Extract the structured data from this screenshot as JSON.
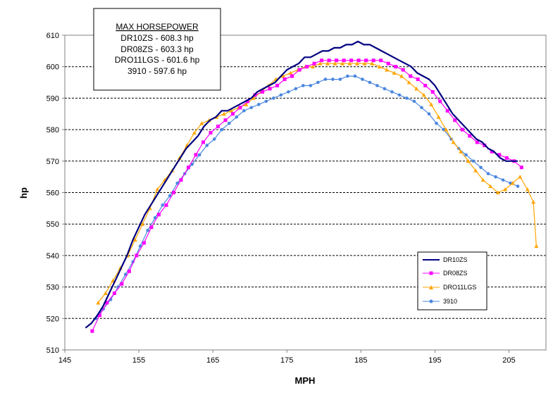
{
  "chart_data": {
    "type": "line",
    "xlabel": "MPH",
    "ylabel": "hp",
    "xlim": [
      145,
      210
    ],
    "ylim": [
      510,
      610
    ],
    "xticks": [
      "145",
      "155",
      "165",
      "175",
      "185",
      "195",
      "205"
    ],
    "yticks": [
      "510",
      "520",
      "530",
      "540",
      "550",
      "560",
      "570",
      "580",
      "590",
      "600",
      "610"
    ],
    "grid": "horizontal dashed",
    "legend_position": "bottom-right",
    "annotation": {
      "title": "MAX HORSEPOWER",
      "lines": [
        "DR10ZS  - 608.3 hp",
        "DR08ZS  - 603.3 hp",
        "DRO11LGS  - 601.6 hp",
        "3910 - 597.6 hp"
      ]
    },
    "series": [
      {
        "name": "DR10ZS",
        "color": "#000080",
        "marker": "none",
        "x": [
          147.8,
          148.6,
          149.4,
          150.2,
          151,
          151.8,
          152.6,
          153.4,
          154.2,
          155,
          155.8,
          156.6,
          157.4,
          158.2,
          159,
          159.8,
          160.6,
          161.4,
          162.2,
          163,
          163.8,
          164.6,
          165.4,
          166.2,
          167,
          167.8,
          168.6,
          169.4,
          170.2,
          171,
          171.8,
          172.6,
          173.4,
          174.2,
          175,
          175.8,
          176.6,
          177.4,
          178.2,
          179,
          179.8,
          180.6,
          181.4,
          182.2,
          183,
          183.8,
          184.6,
          185.4,
          186.2,
          187,
          187.8,
          188.6,
          189.4,
          190.2,
          191,
          191.8,
          192.6,
          193.4,
          194.2,
          195,
          195.8,
          196.6,
          197.4,
          198.2,
          199,
          199.8,
          200.6,
          201.4,
          202.2,
          203,
          203.8,
          204.6,
          205.4,
          206.2
        ],
        "y": [
          517,
          518.5,
          521,
          524,
          528,
          532,
          536,
          540,
          545,
          549,
          553,
          556,
          559,
          562,
          565,
          568,
          571,
          574,
          576,
          578,
          581,
          583,
          584,
          586,
          586,
          587,
          588,
          589,
          590,
          592,
          593,
          594,
          595,
          597,
          599,
          600,
          601,
          603,
          603,
          604,
          605,
          605,
          606,
          606,
          607,
          607,
          608,
          607,
          607,
          606,
          605,
          604,
          603,
          602,
          601,
          600,
          598,
          597,
          596,
          594,
          591,
          588,
          585,
          583,
          581,
          579,
          577,
          576,
          574,
          573,
          571,
          570,
          570,
          570
        ]
      },
      {
        "name": "DR08ZS",
        "color": "#ff00ff",
        "marker": "square",
        "x": [
          148.7,
          149.7,
          150.7,
          151.7,
          152.7,
          153.7,
          154.7,
          155.7,
          156.7,
          157.7,
          158.7,
          159.7,
          160.7,
          161.7,
          162.7,
          163.7,
          164.7,
          165.7,
          166.7,
          167.7,
          168.7,
          169.7,
          170.7,
          171.7,
          172.7,
          173.7,
          174.7,
          175.7,
          176.7,
          177.7,
          178.7,
          179.7,
          180.7,
          181.7,
          182.7,
          183.7,
          184.7,
          185.7,
          186.7,
          187.7,
          188.7,
          189.7,
          190.7,
          191.7,
          192.7,
          193.7,
          194.7,
          195.7,
          196.7,
          197.7,
          198.7,
          199.7,
          200.7,
          201.7,
          202.7,
          203.7,
          204.7,
          205.7,
          206.7
        ],
        "y": [
          516,
          521,
          525,
          528,
          531,
          535,
          540,
          544,
          549,
          553,
          556,
          560,
          564,
          568,
          572,
          576,
          579,
          581,
          583,
          585,
          587,
          589,
          591,
          592,
          593,
          594,
          596,
          597,
          599,
          600,
          601,
          602,
          602,
          602,
          602,
          602,
          602,
          602,
          602,
          602,
          601,
          600,
          599,
          597,
          596,
          594,
          592,
          589,
          586,
          583,
          580,
          578,
          576,
          575,
          573,
          572,
          571,
          570,
          568
        ]
      },
      {
        "name": "DRO11LGS",
        "color": "#ffa500",
        "marker": "triangle",
        "x": [
          149.5,
          150.5,
          151.5,
          152.5,
          153.5,
          154.5,
          155.5,
          156.5,
          157.5,
          158.5,
          159.5,
          160.5,
          161.5,
          162.5,
          163.5,
          164.5,
          165.5,
          166.5,
          167.5,
          168.5,
          169.5,
          170.5,
          171.5,
          172.5,
          173.5,
          174.5,
          175.5,
          176.5,
          177.5,
          178.5,
          179.5,
          180.5,
          181.5,
          182.5,
          183.5,
          184.5,
          185.5,
          186.5,
          187.5,
          188.5,
          189.5,
          190.5,
          191.5,
          192.5,
          193.5,
          194.5,
          195.5,
          196.5,
          197.5,
          198.5,
          199.5,
          200.5,
          201.5,
          202.5,
          203.5,
          204.5,
          205.5,
          206.5,
          207.5,
          208.3,
          208.7
        ],
        "y": [
          525,
          528,
          532,
          536,
          540,
          545,
          550,
          555,
          561,
          564,
          567,
          571,
          575,
          579,
          582,
          583,
          584,
          585,
          586,
          587,
          588,
          590,
          592,
          594,
          596,
          597,
          598,
          599,
          600,
          600,
          601,
          601,
          601,
          601,
          601,
          601,
          601,
          601,
          600,
          599,
          598,
          597,
          595,
          593,
          591,
          588,
          584,
          580,
          576,
          573,
          570,
          567,
          564,
          562,
          560,
          561,
          563,
          565,
          561,
          557,
          543
        ]
      },
      {
        "name": "3910",
        "color": "#4a86e0",
        "marker": "circle",
        "x": [
          149.2,
          150.2,
          151.2,
          152.2,
          153.2,
          154.2,
          155.2,
          156.2,
          157.2,
          158.2,
          159.2,
          160.2,
          161.2,
          162.2,
          163.2,
          164.2,
          165.2,
          166.2,
          167.2,
          168.2,
          169.2,
          170.2,
          171.2,
          172.2,
          173.2,
          174.2,
          175.2,
          176.2,
          177.2,
          178.2,
          179.2,
          180.2,
          181.2,
          182.2,
          183.2,
          184.2,
          185.2,
          186.2,
          187.2,
          188.2,
          189.2,
          190.2,
          191.2,
          192.2,
          193.2,
          194.2,
          195.2,
          196.2,
          197.2,
          198.2,
          199.2,
          200.2,
          201.2,
          202.2,
          203.2,
          204.2,
          205.2,
          206.2
        ],
        "y": [
          520,
          523,
          526,
          530,
          534,
          538,
          543,
          548,
          552,
          556,
          559,
          563,
          566,
          569,
          572,
          575,
          577,
          580,
          582,
          584,
          586,
          587,
          588,
          589,
          590,
          591,
          592,
          593,
          594,
          594,
          595,
          596,
          596,
          596,
          597,
          597,
          596,
          595,
          594,
          593,
          592,
          591,
          590,
          589,
          587,
          585,
          582,
          580,
          577,
          574,
          572,
          570,
          568,
          566,
          565,
          564,
          563,
          562
        ]
      }
    ]
  }
}
